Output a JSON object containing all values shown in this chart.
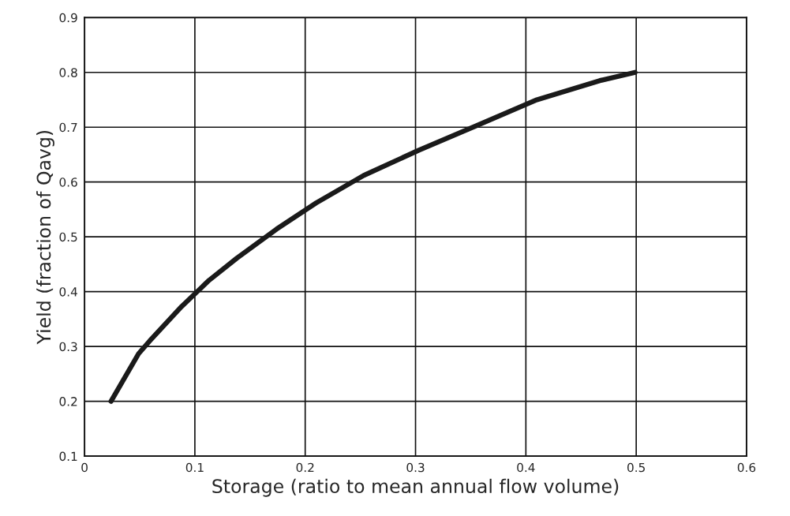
{
  "chart_data": {
    "type": "line",
    "xlabel": "Storage (ratio to mean annual flow volume)",
    "ylabel": "Yield (fraction of Qavg)",
    "series": [
      {
        "color": "#1a1a1a",
        "x": [
          0.024,
          0.049,
          0.059,
          0.088,
          0.113,
          0.138,
          0.174,
          0.21,
          0.253,
          0.303,
          0.353,
          0.41,
          0.467,
          0.499
        ],
        "values": [
          0.2,
          0.287,
          0.31,
          0.373,
          0.421,
          0.461,
          0.514,
          0.562,
          0.612,
          0.658,
          0.701,
          0.75,
          0.785,
          0.8
        ]
      }
    ],
    "xlim": [
      0,
      0.6
    ],
    "xticks": [
      {
        "value": 0,
        "label": "0"
      },
      0.1,
      0.2,
      0.3,
      0.4,
      0.5,
      0.6
    ],
    "ylim": [
      0.1,
      0.9
    ],
    "yticks": [
      0.1,
      0.2,
      0.3,
      0.4,
      0.5,
      0.6,
      0.7,
      0.8,
      0.9
    ],
    "grid": true,
    "marker": "none",
    "line_style": "solid"
  }
}
